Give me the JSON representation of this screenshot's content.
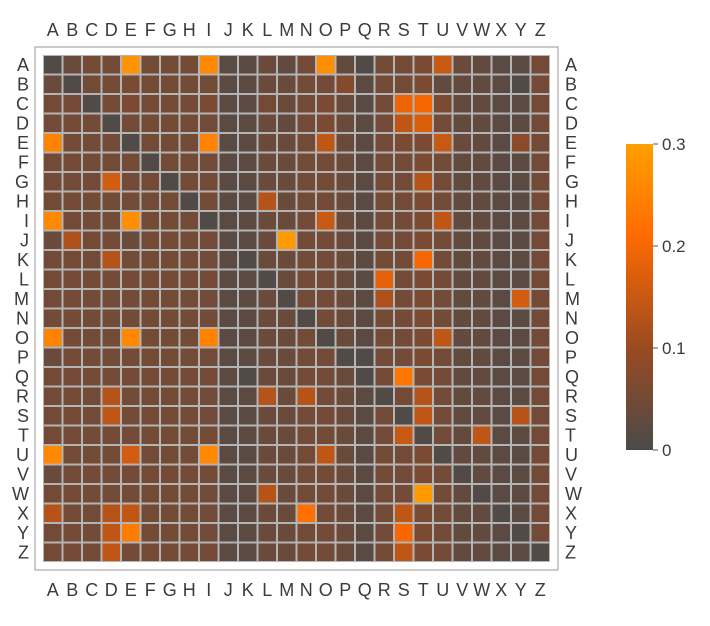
{
  "chart_data": {
    "type": "heatmap",
    "title": "",
    "xlabel": "",
    "ylabel": "",
    "x_labels": [
      "A",
      "B",
      "C",
      "D",
      "E",
      "F",
      "G",
      "H",
      "I",
      "J",
      "K",
      "L",
      "M",
      "N",
      "O",
      "P",
      "Q",
      "R",
      "S",
      "T",
      "U",
      "V",
      "W",
      "X",
      "Y",
      "Z"
    ],
    "y_labels": [
      "A",
      "B",
      "C",
      "D",
      "E",
      "F",
      "G",
      "H",
      "I",
      "J",
      "K",
      "L",
      "M",
      "N",
      "O",
      "P",
      "Q",
      "R",
      "S",
      "T",
      "U",
      "V",
      "W",
      "X",
      "Y",
      "Z"
    ],
    "color_range": [
      0,
      0.3
    ],
    "colorbar_ticks": [
      "0",
      "0.1",
      "0.2",
      "0.3"
    ],
    "colorbar_tick_values": [
      0,
      0.1,
      0.2,
      0.3
    ],
    "colors": {
      "low": "#4a4a4a",
      "mid": "#9a4a22",
      "high_mid": "#ff6a00",
      "high": "#ffa000",
      "grid": "#b4b4b4",
      "frame": "#9a9a9a"
    },
    "values": [
      [
        0.01,
        0.04,
        0.05,
        0.05,
        0.28,
        0.05,
        0.05,
        0.05,
        0.26,
        0.02,
        0.02,
        0.04,
        0.03,
        0.05,
        0.27,
        0.03,
        0.01,
        0.05,
        0.05,
        0.06,
        0.15,
        0.04,
        0.03,
        0.02,
        0.02,
        0.05
      ],
      [
        0.04,
        0.01,
        0.05,
        0.05,
        0.06,
        0.05,
        0.05,
        0.05,
        0.05,
        0.02,
        0.02,
        0.04,
        0.04,
        0.05,
        0.05,
        0.07,
        0.02,
        0.05,
        0.05,
        0.06,
        0.03,
        0.03,
        0.03,
        0.02,
        0.01,
        0.05
      ],
      [
        0.05,
        0.05,
        0.01,
        0.05,
        0.06,
        0.05,
        0.05,
        0.05,
        0.06,
        0.02,
        0.02,
        0.05,
        0.04,
        0.05,
        0.06,
        0.04,
        0.02,
        0.05,
        0.19,
        0.2,
        0.06,
        0.03,
        0.03,
        0.02,
        0.02,
        0.05
      ],
      [
        0.05,
        0.05,
        0.05,
        0.01,
        0.05,
        0.05,
        0.05,
        0.05,
        0.05,
        0.02,
        0.02,
        0.04,
        0.03,
        0.05,
        0.06,
        0.04,
        0.02,
        0.05,
        0.14,
        0.17,
        0.05,
        0.03,
        0.03,
        0.02,
        0.02,
        0.05
      ],
      [
        0.25,
        0.05,
        0.05,
        0.05,
        0.01,
        0.05,
        0.05,
        0.05,
        0.25,
        0.02,
        0.02,
        0.04,
        0.04,
        0.05,
        0.14,
        0.04,
        0.02,
        0.05,
        0.06,
        0.06,
        0.15,
        0.04,
        0.03,
        0.02,
        0.08,
        0.05
      ],
      [
        0.05,
        0.05,
        0.05,
        0.05,
        0.05,
        0.01,
        0.05,
        0.05,
        0.05,
        0.02,
        0.02,
        0.04,
        0.04,
        0.05,
        0.05,
        0.04,
        0.02,
        0.05,
        0.05,
        0.06,
        0.05,
        0.03,
        0.03,
        0.02,
        0.02,
        0.05
      ],
      [
        0.05,
        0.05,
        0.05,
        0.16,
        0.05,
        0.05,
        0.01,
        0.05,
        0.05,
        0.02,
        0.02,
        0.04,
        0.04,
        0.05,
        0.05,
        0.04,
        0.02,
        0.05,
        0.05,
        0.13,
        0.05,
        0.03,
        0.03,
        0.02,
        0.02,
        0.05
      ],
      [
        0.05,
        0.05,
        0.05,
        0.05,
        0.05,
        0.05,
        0.05,
        0.01,
        0.05,
        0.02,
        0.02,
        0.13,
        0.04,
        0.05,
        0.05,
        0.04,
        0.02,
        0.05,
        0.05,
        0.06,
        0.05,
        0.03,
        0.03,
        0.02,
        0.02,
        0.05
      ],
      [
        0.26,
        0.05,
        0.05,
        0.05,
        0.27,
        0.05,
        0.05,
        0.05,
        0.01,
        0.02,
        0.02,
        0.04,
        0.04,
        0.05,
        0.15,
        0.04,
        0.02,
        0.05,
        0.05,
        0.06,
        0.14,
        0.03,
        0.03,
        0.02,
        0.02,
        0.05
      ],
      [
        0.04,
        0.12,
        0.05,
        0.05,
        0.04,
        0.05,
        0.05,
        0.05,
        0.05,
        0.02,
        0.02,
        0.04,
        0.29,
        0.05,
        0.05,
        0.04,
        0.02,
        0.05,
        0.05,
        0.06,
        0.05,
        0.03,
        0.03,
        0.02,
        0.02,
        0.05
      ],
      [
        0.05,
        0.05,
        0.05,
        0.13,
        0.05,
        0.05,
        0.05,
        0.05,
        0.05,
        0.02,
        0.01,
        0.04,
        0.04,
        0.05,
        0.05,
        0.04,
        0.02,
        0.05,
        0.05,
        0.2,
        0.05,
        0.03,
        0.03,
        0.02,
        0.02,
        0.05
      ],
      [
        0.05,
        0.05,
        0.05,
        0.05,
        0.05,
        0.05,
        0.05,
        0.05,
        0.05,
        0.02,
        0.02,
        0.01,
        0.04,
        0.05,
        0.05,
        0.04,
        0.02,
        0.18,
        0.05,
        0.06,
        0.05,
        0.03,
        0.03,
        0.02,
        0.02,
        0.05
      ],
      [
        0.05,
        0.05,
        0.05,
        0.05,
        0.05,
        0.05,
        0.05,
        0.05,
        0.05,
        0.02,
        0.02,
        0.04,
        0.01,
        0.05,
        0.05,
        0.04,
        0.02,
        0.12,
        0.05,
        0.06,
        0.05,
        0.03,
        0.03,
        0.02,
        0.16,
        0.05
      ],
      [
        0.05,
        0.05,
        0.05,
        0.05,
        0.05,
        0.05,
        0.05,
        0.05,
        0.05,
        0.02,
        0.02,
        0.04,
        0.04,
        0.01,
        0.05,
        0.04,
        0.02,
        0.05,
        0.05,
        0.06,
        0.05,
        0.03,
        0.03,
        0.02,
        0.02,
        0.05
      ],
      [
        0.25,
        0.05,
        0.05,
        0.05,
        0.26,
        0.05,
        0.05,
        0.05,
        0.25,
        0.02,
        0.02,
        0.04,
        0.04,
        0.05,
        0.01,
        0.04,
        0.02,
        0.05,
        0.05,
        0.06,
        0.14,
        0.03,
        0.03,
        0.02,
        0.02,
        0.05
      ],
      [
        0.04,
        0.05,
        0.05,
        0.05,
        0.05,
        0.05,
        0.05,
        0.05,
        0.05,
        0.02,
        0.02,
        0.04,
        0.04,
        0.05,
        0.05,
        0.01,
        0.01,
        0.05,
        0.05,
        0.06,
        0.05,
        0.03,
        0.03,
        0.02,
        0.02,
        0.05
      ],
      [
        0.05,
        0.05,
        0.05,
        0.05,
        0.05,
        0.05,
        0.05,
        0.05,
        0.05,
        0.02,
        0.01,
        0.04,
        0.04,
        0.05,
        0.05,
        0.04,
        0.01,
        0.05,
        0.23,
        0.06,
        0.05,
        0.03,
        0.03,
        0.02,
        0.02,
        0.05
      ],
      [
        0.05,
        0.05,
        0.05,
        0.13,
        0.05,
        0.05,
        0.05,
        0.05,
        0.05,
        0.02,
        0.02,
        0.13,
        0.04,
        0.13,
        0.05,
        0.04,
        0.02,
        0.01,
        0.05,
        0.13,
        0.05,
        0.03,
        0.03,
        0.02,
        0.02,
        0.05
      ],
      [
        0.05,
        0.05,
        0.05,
        0.14,
        0.05,
        0.05,
        0.05,
        0.05,
        0.05,
        0.02,
        0.02,
        0.04,
        0.04,
        0.05,
        0.05,
        0.04,
        0.02,
        0.05,
        0.01,
        0.14,
        0.05,
        0.03,
        0.03,
        0.02,
        0.13,
        0.05
      ],
      [
        0.05,
        0.05,
        0.05,
        0.05,
        0.05,
        0.05,
        0.05,
        0.05,
        0.05,
        0.02,
        0.02,
        0.04,
        0.04,
        0.05,
        0.05,
        0.04,
        0.02,
        0.05,
        0.15,
        0.01,
        0.05,
        0.03,
        0.14,
        0.02,
        0.02,
        0.05
      ],
      [
        0.26,
        0.05,
        0.05,
        0.05,
        0.16,
        0.05,
        0.05,
        0.05,
        0.26,
        0.02,
        0.02,
        0.04,
        0.04,
        0.05,
        0.14,
        0.04,
        0.02,
        0.05,
        0.05,
        0.06,
        0.01,
        0.03,
        0.03,
        0.02,
        0.02,
        0.05
      ],
      [
        0.04,
        0.05,
        0.05,
        0.05,
        0.05,
        0.05,
        0.05,
        0.05,
        0.05,
        0.02,
        0.02,
        0.04,
        0.04,
        0.05,
        0.05,
        0.04,
        0.02,
        0.05,
        0.05,
        0.06,
        0.05,
        0.01,
        0.03,
        0.02,
        0.02,
        0.05
      ],
      [
        0.05,
        0.05,
        0.05,
        0.05,
        0.05,
        0.05,
        0.05,
        0.05,
        0.05,
        0.02,
        0.02,
        0.13,
        0.04,
        0.05,
        0.05,
        0.04,
        0.02,
        0.05,
        0.05,
        0.29,
        0.05,
        0.03,
        0.01,
        0.02,
        0.02,
        0.05
      ],
      [
        0.13,
        0.05,
        0.05,
        0.13,
        0.14,
        0.05,
        0.05,
        0.05,
        0.05,
        0.02,
        0.02,
        0.04,
        0.04,
        0.22,
        0.05,
        0.04,
        0.02,
        0.05,
        0.14,
        0.06,
        0.05,
        0.03,
        0.03,
        0.01,
        0.02,
        0.05
      ],
      [
        0.05,
        0.05,
        0.05,
        0.14,
        0.24,
        0.05,
        0.05,
        0.05,
        0.05,
        0.02,
        0.02,
        0.04,
        0.04,
        0.05,
        0.05,
        0.04,
        0.02,
        0.05,
        0.2,
        0.06,
        0.05,
        0.03,
        0.03,
        0.02,
        0.01,
        0.05
      ],
      [
        0.05,
        0.05,
        0.05,
        0.14,
        0.05,
        0.05,
        0.05,
        0.05,
        0.05,
        0.02,
        0.02,
        0.04,
        0.04,
        0.05,
        0.05,
        0.04,
        0.02,
        0.05,
        0.14,
        0.06,
        0.05,
        0.03,
        0.03,
        0.02,
        0.02,
        0.01
      ]
    ]
  }
}
